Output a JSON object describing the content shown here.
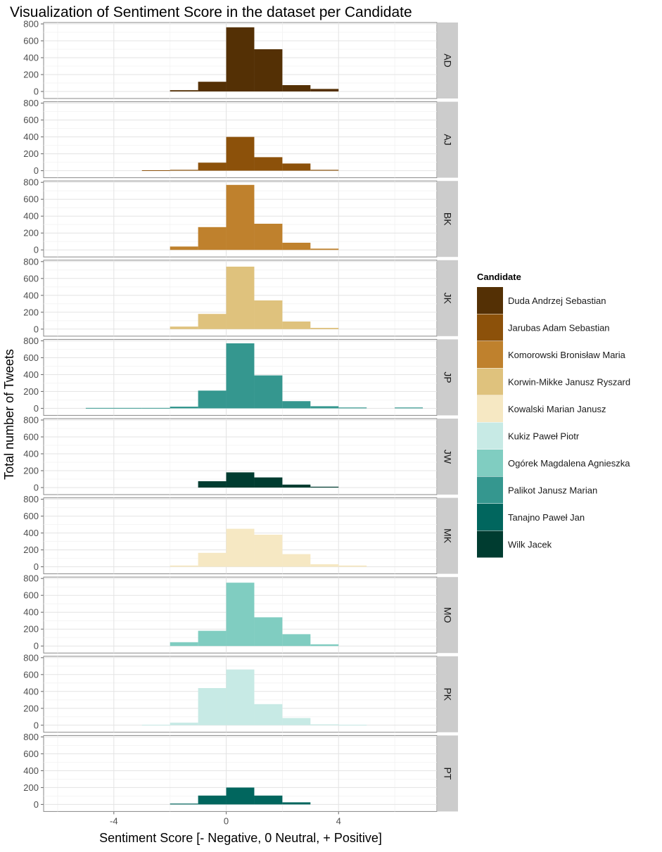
{
  "chart_data": {
    "type": "bar",
    "subtype": "faceted-histogram",
    "title": "Visualization of Sentiment Score in the dataset per Candidate",
    "xlabel": "Sentiment Score [- Negative, 0 Neutral, + Positive]",
    "ylabel": "Total number of Tweets",
    "xlim": [
      -6.5,
      7.5
    ],
    "ylim": [
      0,
      800
    ],
    "x_ticks": [
      -4,
      0,
      4
    ],
    "y_ticks": [
      0,
      200,
      400,
      600,
      800
    ],
    "bin_width": 1,
    "grid": true,
    "legend": {
      "title": "Candidate",
      "position": "right",
      "entries": [
        {
          "label": "Duda Andrzej Sebastian",
          "color": "#543005"
        },
        {
          "label": "Jarubas Adam Sebastian",
          "color": "#8c510a"
        },
        {
          "label": "Komorowski Bronisław Maria",
          "color": "#bf812d"
        },
        {
          "label": "Korwin-Mikke Janusz Ryszard",
          "color": "#dfc27d"
        },
        {
          "label": "Kowalski Marian Janusz",
          "color": "#f6e8c3"
        },
        {
          "label": "Kukiz Paweł Piotr",
          "color": "#c7eae5"
        },
        {
          "label": "Ogórek Magdalena Agnieszka",
          "color": "#80cdc1"
        },
        {
          "label": "Palikot Janusz Marian",
          "color": "#35978f"
        },
        {
          "label": "Tanajno Paweł Jan",
          "color": "#01665e"
        },
        {
          "label": "Wilk Jacek",
          "color": "#003c30"
        }
      ]
    },
    "facets": [
      {
        "label": "AD",
        "color": "#543005",
        "bins": [
          [
            -2,
            15
          ],
          [
            -1,
            115
          ],
          [
            0,
            760
          ],
          [
            1,
            500
          ],
          [
            2,
            75
          ],
          [
            3,
            30
          ]
        ]
      },
      {
        "label": "AJ",
        "color": "#8c510a",
        "bins": [
          [
            -3,
            5
          ],
          [
            -2,
            10
          ],
          [
            -1,
            95
          ],
          [
            0,
            400
          ],
          [
            1,
            160
          ],
          [
            2,
            85
          ],
          [
            3,
            10
          ]
        ]
      },
      {
        "label": "BK",
        "color": "#bf812d",
        "bins": [
          [
            -2,
            40
          ],
          [
            -1,
            270
          ],
          [
            0,
            770
          ],
          [
            1,
            310
          ],
          [
            2,
            85
          ],
          [
            3,
            15
          ]
        ]
      },
      {
        "label": "JK",
        "color": "#dfc27d",
        "bins": [
          [
            -2,
            30
          ],
          [
            -1,
            180
          ],
          [
            0,
            740
          ],
          [
            1,
            340
          ],
          [
            2,
            90
          ],
          [
            3,
            15
          ]
        ]
      },
      {
        "label": "JP",
        "color": "#35978f",
        "bins": [
          [
            -5,
            5
          ],
          [
            -4,
            5
          ],
          [
            -3,
            5
          ],
          [
            -2,
            20
          ],
          [
            -1,
            210
          ],
          [
            0,
            770
          ],
          [
            1,
            390
          ],
          [
            2,
            85
          ],
          [
            3,
            25
          ],
          [
            4,
            10
          ],
          [
            6,
            10
          ]
        ]
      },
      {
        "label": "JW",
        "color": "#003c30",
        "bins": [
          [
            -1,
            75
          ],
          [
            0,
            180
          ],
          [
            1,
            120
          ],
          [
            2,
            35
          ],
          [
            3,
            10
          ]
        ]
      },
      {
        "label": "MK",
        "color": "#f6e8c3",
        "bins": [
          [
            -2,
            15
          ],
          [
            -1,
            165
          ],
          [
            0,
            450
          ],
          [
            1,
            380
          ],
          [
            2,
            150
          ],
          [
            3,
            30
          ],
          [
            4,
            15
          ]
        ]
      },
      {
        "label": "MO",
        "color": "#80cdc1",
        "bins": [
          [
            -2,
            45
          ],
          [
            -1,
            180
          ],
          [
            0,
            750
          ],
          [
            1,
            340
          ],
          [
            2,
            140
          ],
          [
            3,
            20
          ]
        ]
      },
      {
        "label": "PK",
        "color": "#c7eae5",
        "bins": [
          [
            -3,
            5
          ],
          [
            -2,
            30
          ],
          [
            -1,
            440
          ],
          [
            0,
            660
          ],
          [
            1,
            250
          ],
          [
            2,
            85
          ],
          [
            3,
            10
          ],
          [
            4,
            5
          ]
        ]
      },
      {
        "label": "PT",
        "color": "#01665e",
        "bins": [
          [
            -2,
            10
          ],
          [
            -1,
            105
          ],
          [
            0,
            200
          ],
          [
            1,
            105
          ],
          [
            2,
            25
          ]
        ]
      }
    ]
  }
}
